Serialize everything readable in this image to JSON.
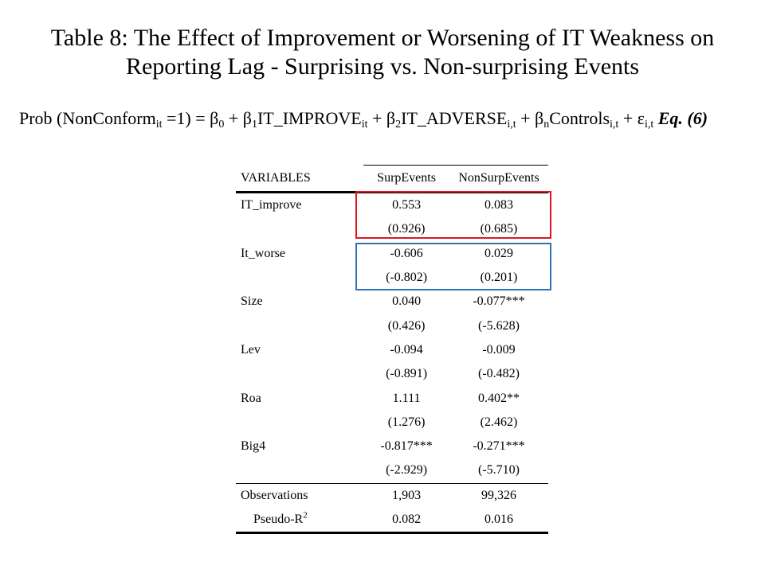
{
  "title": {
    "line1": "Table 8: The Effect of Improvement or Worsening of IT Weakness on",
    "line2": "Reporting Lag - Surprising vs. Non-surprising Events"
  },
  "equation": {
    "part1": "Prob (NonConform",
    "sub1": "it",
    "part2": " =1) = β",
    "sub2": "0",
    "part3": " + β",
    "sub3": "1",
    "part4": "IT_IMPROVE",
    "sub4": "it",
    "part5": " + β",
    "sub5": "2",
    "part6": "IT_ADVERSE",
    "sub6": "i,t",
    "part7": " + β",
    "sub7": "n",
    "part8": "Controls",
    "sub8": "i,t",
    "part9": " + ε",
    "sub9": "i,t",
    "label": "Eq. (6)"
  },
  "table": {
    "headers": {
      "variables": "VARIABLES",
      "col1": "SurpEvents",
      "col2": "NonSurpEvents"
    },
    "rows": [
      {
        "label": "IT_improve",
        "v1": "0.553",
        "v2": "0.083"
      },
      {
        "label": "",
        "v1": "(0.926)",
        "v2": "(0.685)"
      },
      {
        "label": "It_worse",
        "v1": "-0.606",
        "v2": "0.029"
      },
      {
        "label": "",
        "v1": "(-0.802)",
        "v2": "(0.201)"
      },
      {
        "label": "Size",
        "v1": "0.040",
        "v2": "-0.077***"
      },
      {
        "label": "",
        "v1": "(0.426)",
        "v2": "(-5.628)"
      },
      {
        "label": "Lev",
        "v1": "-0.094",
        "v2": "-0.009"
      },
      {
        "label": "",
        "v1": "(-0.891)",
        "v2": "(-0.482)"
      },
      {
        "label": "Roa",
        "v1": "1.111",
        "v2": "0.402**"
      },
      {
        "label": "",
        "v1": "(1.276)",
        "v2": "(2.462)"
      },
      {
        "label": "Big4",
        "v1": "-0.817***",
        "v2": "-0.271***"
      },
      {
        "label": "",
        "v1": "(-2.929)",
        "v2": "(-5.710)"
      }
    ],
    "observations": {
      "label": "Observations",
      "v1": "1,903",
      "v2": "99,326"
    },
    "pseudo_r2": {
      "label": "Pseudo-R",
      "sup": "2",
      "v1": "0.082",
      "v2": "0.016"
    }
  },
  "highlight_colors": {
    "red_box": "#e0151e",
    "blue_box": "#2e75b6"
  }
}
